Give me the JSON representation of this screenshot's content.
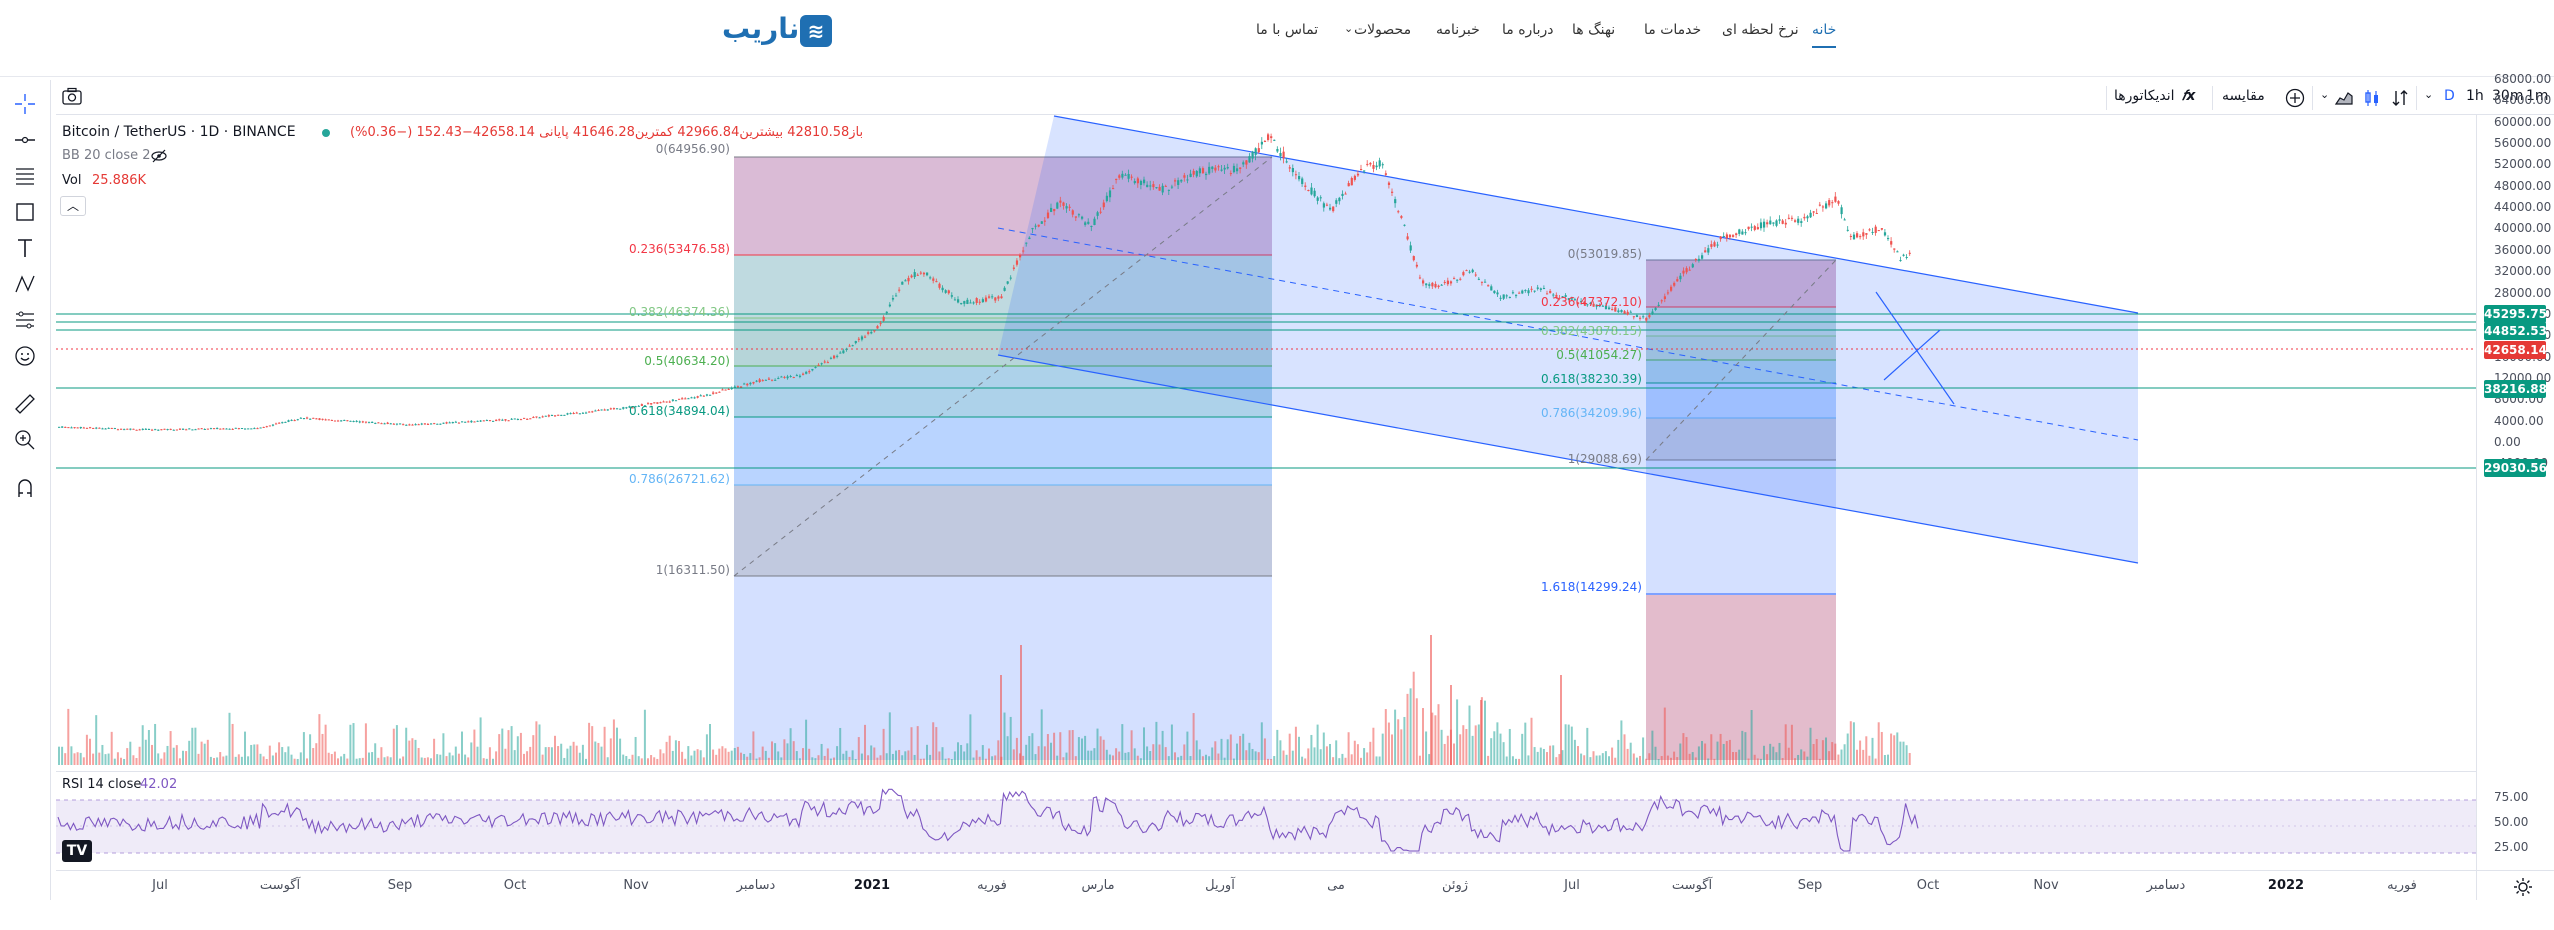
{
  "header": {
    "logo_text": "ناریب",
    "logo_badge": "≋",
    "nav": [
      {
        "label": "خانه",
        "active": true
      },
      {
        "label": "نرخ لحظه ای",
        "active": false
      },
      {
        "label": "خدمات ما",
        "active": false
      },
      {
        "label": "نهنگ ها",
        "active": false
      },
      {
        "label": "درباره ما",
        "active": false
      },
      {
        "label": "خبرنامه",
        "active": false
      },
      {
        "label": "محصولات",
        "active": false
      },
      {
        "label": "تماس با ما",
        "active": false
      }
    ]
  },
  "toolbar": {
    "intervals": [
      "1m",
      "30m",
      "1h",
      "D"
    ],
    "compare_label": "مقایسه",
    "indicators_label": "اندیکاتورها"
  },
  "legend": {
    "symbol": "Bitcoin / TetherUS · 1D · BINANCE",
    "ohlc": "باز42810.58 بیشترین42966.84 کمترین41646.28 پایانی 42658.14−152.43 (−0.36%)",
    "bb": "BB 20 close 2",
    "vol_label": "Vol",
    "vol_value": "25.886K",
    "rsi_label": "RSI 14 close",
    "rsi_value": "42.02"
  },
  "price_axis": {
    "ticks": [
      "68000.00",
      "64000.00",
      "60000.00",
      "56000.00",
      "52000.00",
      "48000.00",
      "44000.00",
      "40000.00",
      "36000.00",
      "32000.00",
      "28000.00",
      "24000.00",
      "20000.00",
      "16000.00",
      "12000.00",
      "8000.00",
      "4000.00",
      "0.00",
      "-4000.00"
    ],
    "tags": [
      {
        "value": "45295.75",
        "color": "#089981"
      },
      {
        "value": "44852.53",
        "color": "#089981"
      },
      {
        "value": "42658.14",
        "color": "#e53935"
      },
      {
        "value": "38216.88",
        "color": "#089981"
      },
      {
        "value": "29030.56",
        "color": "#089981"
      }
    ],
    "rsi_ticks": [
      "75.00",
      "50.00",
      "25.00"
    ]
  },
  "time_axis": [
    {
      "label": "Jul",
      "bold": false
    },
    {
      "label": "آگوست",
      "bold": false
    },
    {
      "label": "Sep",
      "bold": false
    },
    {
      "label": "Oct",
      "bold": false
    },
    {
      "label": "Nov",
      "bold": false
    },
    {
      "label": "دسامبر",
      "bold": false
    },
    {
      "label": "2021",
      "bold": true
    },
    {
      "label": "فوریه",
      "bold": false
    },
    {
      "label": "مارس",
      "bold": false
    },
    {
      "label": "آوریل",
      "bold": false
    },
    {
      "label": "می",
      "bold": false
    },
    {
      "label": "ژوئن",
      "bold": false
    },
    {
      "label": "Jul",
      "bold": false
    },
    {
      "label": "آگوست",
      "bold": false
    },
    {
      "label": "Sep",
      "bold": false
    },
    {
      "label": "Oct",
      "bold": false
    },
    {
      "label": "Nov",
      "bold": false
    },
    {
      "label": "دسامبر",
      "bold": false
    },
    {
      "label": "2022",
      "bold": true
    },
    {
      "label": "فوریه",
      "bold": false
    }
  ],
  "fib_left": [
    "0(64956.90)",
    "0.236(53476.58)",
    "0.382(46374.36)",
    "0.5(40634.20)",
    "0.618(34894.04)",
    "0.786(26721.62)",
    "1(16311.50)"
  ],
  "fib_right": [
    "0(53019.85)",
    "0.236(47372.10)",
    "0.382(43878.15)",
    "0.5(41054.27)",
    "0.618(38230.39)",
    "0.786(34209.96)",
    "1(29088.69)",
    "1.618(14299.24)"
  ],
  "colors": {
    "up": "#26a69a",
    "down": "#ef5350",
    "accent": "#2962ff",
    "brand": "#1f6fb2"
  }
}
